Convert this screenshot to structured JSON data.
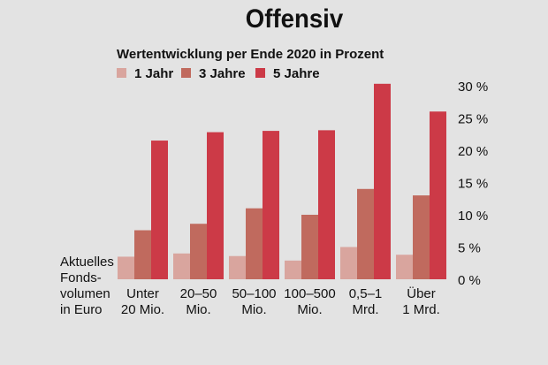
{
  "chart_data": {
    "type": "bar",
    "title": "Offensiv",
    "subtitle": "Wertentwicklung per Ende 2020 in Prozent",
    "x_axis_title": [
      "Aktuelles",
      "Fonds-",
      "volumen",
      "in Euro"
    ],
    "categories": [
      [
        "Unter",
        "20 Mio."
      ],
      [
        "20–50",
        "Mio."
      ],
      [
        "50–100",
        "Mio."
      ],
      [
        "100–500",
        "Mio."
      ],
      [
        "0,5–1",
        "Mrd."
      ],
      [
        "Über",
        "1 Mrd."
      ]
    ],
    "series": [
      {
        "name": "1 Jahr",
        "color": "#d9a59e",
        "values": [
          3.5,
          4.0,
          3.6,
          2.9,
          5.0,
          3.8
        ]
      },
      {
        "name": "3 Jahre",
        "color": "#c06a5e",
        "values": [
          7.6,
          8.6,
          11.0,
          10.0,
          14.0,
          13.0
        ]
      },
      {
        "name": "5 Jahre",
        "color": "#cc3a47",
        "values": [
          21.5,
          22.8,
          23.0,
          23.1,
          30.3,
          26.0
        ]
      }
    ],
    "y_ticks": [
      "0 %",
      "5 %",
      "10 %",
      "15 %",
      "20 %",
      "25 %",
      "30 %"
    ],
    "ylim": [
      0,
      30
    ],
    "y_axis_position": "right",
    "grid": false,
    "legend_position": "top-left"
  }
}
